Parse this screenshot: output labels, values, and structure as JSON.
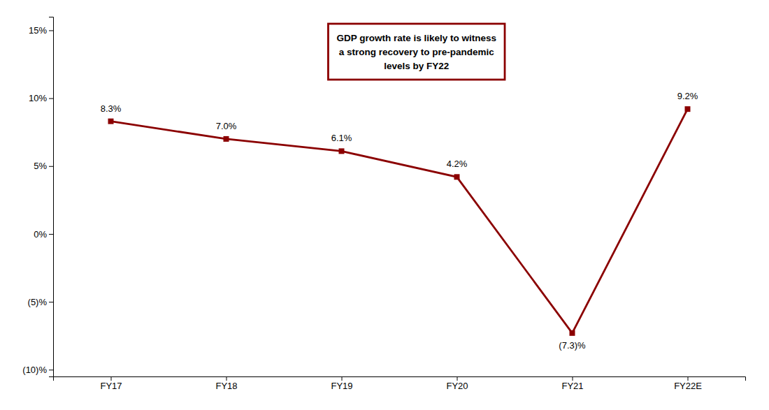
{
  "chart_data": {
    "type": "line",
    "categories": [
      "FY17",
      "FY18",
      "FY19",
      "FY20",
      "FY21",
      "FY22E"
    ],
    "values": [
      8.3,
      7.0,
      6.1,
      4.2,
      -7.3,
      9.2
    ],
    "value_labels": [
      "8.3%",
      "7.0%",
      "6.1%",
      "4.2%",
      "(7.3)%",
      "9.2%"
    ],
    "data_labels": true,
    "color": "#8B0000",
    "marker": "square",
    "line_style": "solid",
    "ylim": [
      -10.5,
      16
    ],
    "yticks": [
      {
        "value": -10,
        "label": "(10)%"
      },
      {
        "value": -5,
        "label": "(5)%"
      },
      {
        "value": 0,
        "label": "0%"
      },
      {
        "value": 5,
        "label": "5%"
      },
      {
        "value": 10,
        "label": "10%"
      },
      {
        "value": 15,
        "label": "15%"
      }
    ],
    "grid": false,
    "annotations": [
      "GDP growth rate is likely to witness\na strong recovery to pre-pandemic\nlevels by FY22"
    ]
  }
}
